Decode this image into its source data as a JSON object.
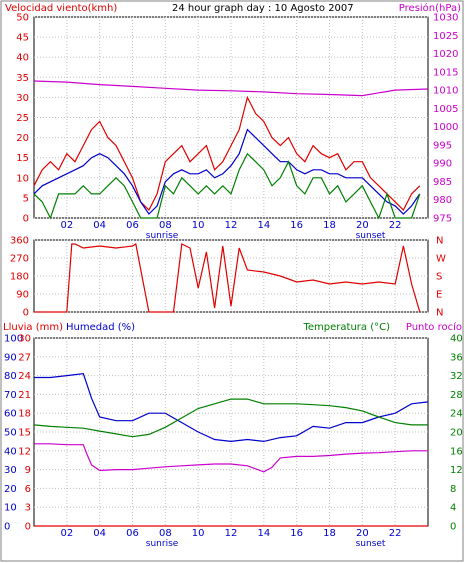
{
  "chart_data": [
    {
      "type": "line",
      "title": "24 hour graph day : 10 Agosto 2007",
      "ylabel_left": "Velocidad viento(kmh)",
      "ylabel_right": "Presión(hPa)",
      "x_ticks": [
        "02",
        "04",
        "06",
        "08",
        "10",
        "12",
        "14",
        "16",
        "18",
        "20",
        "22"
      ],
      "x_markers": [
        {
          "label": "sunrise",
          "x": 7.8
        },
        {
          "label": "sunset",
          "x": 20.5
        }
      ],
      "xlim": [
        0,
        24
      ],
      "ylim_left": [
        0,
        50
      ],
      "yticks_left": [
        0,
        5,
        10,
        15,
        20,
        25,
        30,
        35,
        40,
        45,
        50
      ],
      "ylim_right": [
        975,
        1030
      ],
      "yticks_right": [
        975,
        980,
        985,
        990,
        995,
        1000,
        1005,
        1010,
        1015,
        1020,
        1025,
        1030
      ],
      "grid": true,
      "series": [
        {
          "color": "#e00000",
          "axis": "left",
          "x": [
            0,
            0.5,
            1,
            1.5,
            2,
            2.5,
            3,
            3.5,
            4,
            4.5,
            5,
            5.5,
            6,
            6.5,
            7,
            7.5,
            8,
            8.5,
            9,
            9.5,
            10,
            10.5,
            11,
            11.5,
            12,
            12.5,
            13,
            13.5,
            14,
            14.5,
            15,
            15.5,
            16,
            16.5,
            17,
            17.5,
            18,
            18.5,
            19,
            19.5,
            20,
            20.5,
            21,
            21.5,
            22,
            22.5,
            23,
            23.5
          ],
          "y": [
            8,
            12,
            14,
            12,
            16,
            14,
            18,
            22,
            24,
            20,
            18,
            14,
            10,
            4,
            2,
            6,
            14,
            16,
            18,
            14,
            16,
            18,
            12,
            14,
            18,
            22,
            30,
            26,
            24,
            20,
            18,
            20,
            16,
            14,
            18,
            16,
            15,
            16,
            12,
            14,
            14,
            10,
            8,
            6,
            4,
            2,
            6,
            8
          ]
        },
        {
          "color": "#0000cc",
          "axis": "left",
          "x": [
            0,
            0.5,
            1,
            1.5,
            2,
            2.5,
            3,
            3.5,
            4,
            4.5,
            5,
            5.5,
            6,
            6.5,
            7,
            7.5,
            8,
            8.5,
            9,
            9.5,
            10,
            10.5,
            11,
            11.5,
            12,
            12.5,
            13,
            13.5,
            14,
            14.5,
            15,
            15.5,
            16,
            16.5,
            17,
            17.5,
            18,
            18.5,
            19,
            19.5,
            20,
            20.5,
            21,
            21.5,
            22,
            22.5,
            23,
            23.5
          ],
          "y": [
            6,
            8,
            9,
            10,
            11,
            12,
            13,
            15,
            16,
            15,
            13,
            11,
            8,
            4,
            1,
            3,
            9,
            11,
            12,
            11,
            11,
            12,
            10,
            11,
            13,
            16,
            22,
            20,
            18,
            16,
            14,
            14,
            12,
            11,
            12,
            12,
            11,
            11,
            10,
            10,
            10,
            8,
            6,
            4,
            3,
            1,
            3,
            6
          ]
        },
        {
          "color": "#008000",
          "axis": "left",
          "x": [
            0,
            0.5,
            1,
            1.5,
            2,
            2.5,
            3,
            3.5,
            4,
            4.5,
            5,
            5.5,
            6,
            6.5,
            7,
            7.5,
            8,
            8.5,
            9,
            9.5,
            10,
            10.5,
            11,
            11.5,
            12,
            12.5,
            13,
            13.5,
            14,
            14.5,
            15,
            15.5,
            16,
            16.5,
            17,
            17.5,
            18,
            18.5,
            19,
            19.5,
            20,
            20.5,
            21,
            21.5,
            22,
            22.5,
            23,
            23.5
          ],
          "y": [
            6,
            4,
            0,
            6,
            6,
            6,
            8,
            6,
            6,
            8,
            10,
            8,
            4,
            0,
            0,
            0,
            8,
            6,
            10,
            8,
            6,
            8,
            6,
            8,
            6,
            12,
            16,
            14,
            12,
            8,
            10,
            14,
            8,
            6,
            10,
            10,
            6,
            8,
            4,
            6,
            8,
            4,
            0,
            6,
            0,
            0,
            0,
            6
          ]
        },
        {
          "color": "#cc00cc",
          "axis": "right",
          "x": [
            0,
            2,
            4,
            6,
            8,
            10,
            12,
            14,
            16,
            18,
            20,
            22,
            24
          ],
          "y": [
            1012.5,
            1012.2,
            1011.5,
            1011,
            1010.5,
            1010,
            1009.8,
            1009.5,
            1009,
            1008.8,
            1008.5,
            1010,
            1010.3
          ]
        }
      ]
    },
    {
      "type": "line",
      "title": "",
      "xlim": [
        0,
        24
      ],
      "ylim_left": [
        0,
        360
      ],
      "yticks_left": [
        0,
        90,
        180,
        270,
        360
      ],
      "yticks_right": [
        "N",
        "W",
        "S",
        "E",
        "N"
      ],
      "grid": true,
      "series": [
        {
          "color": "#e00000",
          "x": [
            0,
            1,
            2,
            2.3,
            2.5,
            3,
            4,
            5,
            6,
            6.2,
            7,
            7.5,
            8,
            8.5,
            9,
            9.5,
            10,
            10.5,
            11,
            11.5,
            12,
            12.5,
            13,
            14,
            15,
            16,
            17,
            18,
            19,
            20,
            21,
            22,
            22.5,
            23,
            23.5
          ],
          "y": [
            0,
            0,
            0,
            340,
            340,
            320,
            330,
            320,
            330,
            340,
            0,
            0,
            0,
            0,
            340,
            320,
            120,
            300,
            20,
            330,
            30,
            320,
            210,
            200,
            180,
            150,
            160,
            140,
            150,
            140,
            150,
            140,
            330,
            140,
            0
          ]
        }
      ]
    },
    {
      "type": "line",
      "title": "",
      "ylabel_left1": "Lluvia (mm)",
      "ylabel_left2": "Humedad (%)",
      "ylabel_right": "Temperatura (°C)",
      "ylabel_right2": "Punto rocío",
      "x_ticks": [
        "02",
        "04",
        "06",
        "08",
        "10",
        "12",
        "14",
        "16",
        "18",
        "20",
        "22"
      ],
      "x_markers": [
        {
          "label": "sunrise",
          "x": 7.8
        },
        {
          "label": "sunset",
          "x": 20.5
        }
      ],
      "xlim": [
        0,
        24
      ],
      "ylim_rain": [
        0,
        30
      ],
      "yticks_rain": [
        0,
        3,
        6,
        9,
        12,
        15,
        18,
        21,
        24,
        27,
        30
      ],
      "ylim_humidity": [
        0,
        100
      ],
      "yticks_humidity": [
        0,
        10,
        20,
        30,
        40,
        50,
        60,
        70,
        80,
        90,
        100
      ],
      "ylim_temp": [
        0,
        40
      ],
      "yticks_temp": [
        0,
        4,
        8,
        12,
        16,
        20,
        24,
        28,
        32,
        36,
        40
      ],
      "grid": true,
      "series": [
        {
          "name": "Humedad",
          "color": "#0000cc",
          "axis": "humidity",
          "x": [
            0,
            1,
            2,
            3,
            3.2,
            3.5,
            4,
            5,
            6,
            7,
            8,
            9,
            10,
            11,
            12,
            13,
            14,
            15,
            16,
            17,
            18,
            19,
            20,
            21,
            22,
            23,
            24
          ],
          "y": [
            79,
            79,
            80,
            81,
            76,
            68,
            58,
            56,
            56,
            60,
            60,
            55,
            50,
            46,
            45,
            46,
            45,
            47,
            48,
            53,
            52,
            55,
            55,
            58,
            60,
            65,
            66
          ]
        },
        {
          "name": "Temperatura",
          "color": "#008000",
          "axis": "temp",
          "x": [
            0,
            1,
            2,
            3,
            4,
            5,
            6,
            7,
            8,
            9,
            10,
            11,
            12,
            13,
            14,
            15,
            16,
            17,
            18,
            19,
            20,
            21,
            22,
            23,
            24
          ],
          "y": [
            21.5,
            21.2,
            21,
            20.8,
            20.2,
            19.6,
            19,
            19.5,
            21,
            23,
            25,
            26,
            27,
            27,
            26,
            26,
            26,
            25.8,
            25.6,
            25.2,
            24.5,
            23.2,
            22,
            21.5,
            21.5
          ]
        },
        {
          "name": "Punto rocío",
          "color": "#cc00cc",
          "axis": "temp",
          "x": [
            0,
            1,
            2,
            3,
            3.2,
            3.5,
            4,
            5,
            6,
            7,
            8,
            9,
            10,
            11,
            12,
            13,
            14,
            14.5,
            15,
            16,
            17,
            18,
            19,
            20,
            21,
            22,
            23,
            24
          ],
          "y": [
            17.5,
            17.5,
            17.3,
            17.3,
            15.5,
            13,
            11.8,
            12,
            12,
            12.3,
            12.6,
            12.8,
            13,
            13.2,
            13.2,
            12.8,
            11.5,
            12.5,
            14.5,
            14.8,
            14.8,
            15,
            15.3,
            15.5,
            15.6,
            15.8,
            16,
            16
          ]
        },
        {
          "name": "Lluvia",
          "color": "#e00000",
          "axis": "rain",
          "x": [
            0,
            24
          ],
          "y": [
            0,
            0
          ]
        }
      ]
    }
  ]
}
